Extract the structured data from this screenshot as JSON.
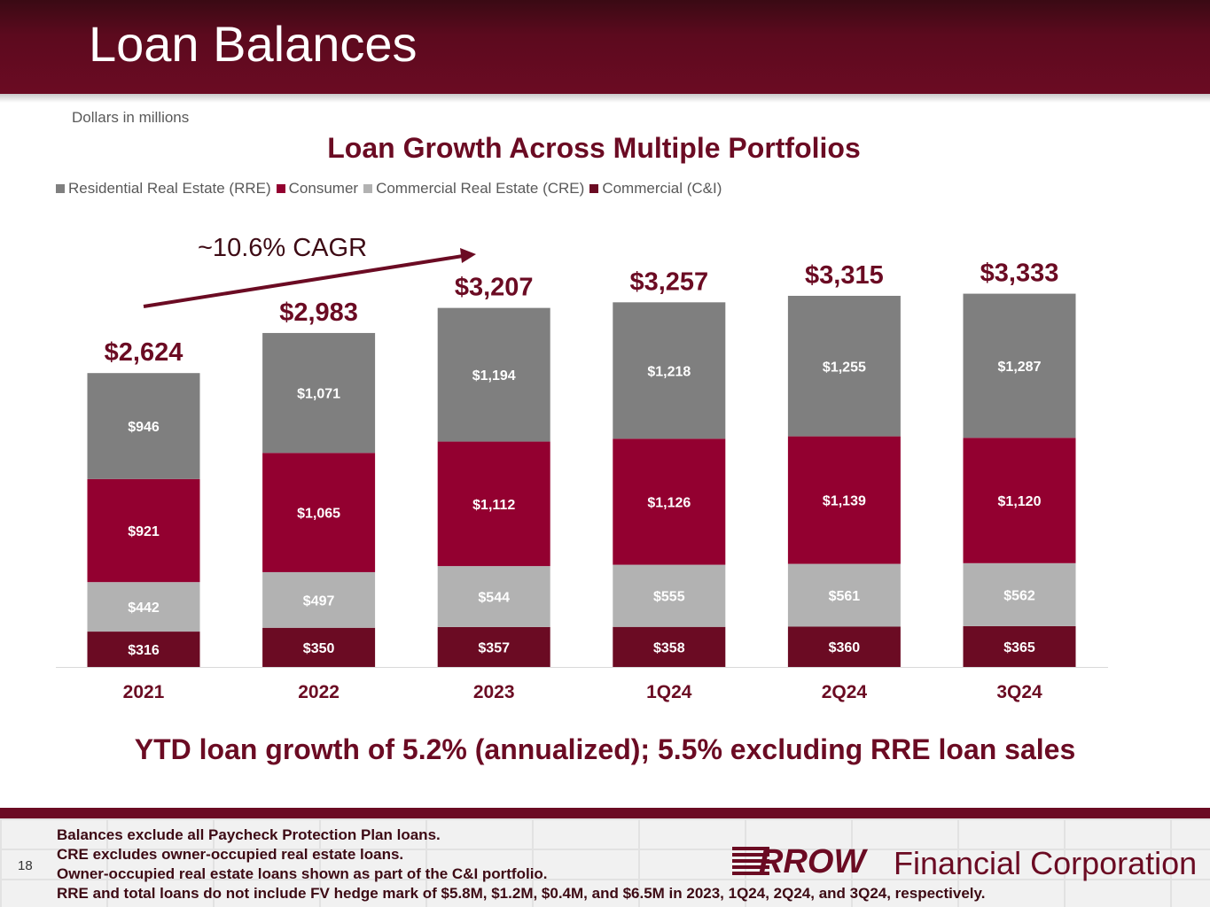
{
  "header": {
    "title": "Loan Balances"
  },
  "units_note": "Dollars in millions",
  "callout": "YTD loan growth of 5.2% (annualized); 5.5% excluding RRE loan sales",
  "cagr_label": "~10.6% CAGR",
  "footer": {
    "page_number": "18",
    "notes": [
      "Balances exclude all Paycheck Protection Plan loans.",
      "CRE excludes owner-occupied real estate loans.",
      "Owner-occupied real estate loans shown as part of the C&I portfolio.",
      "RRE and total loans do not include FV hedge mark of $5.8M, $1.2M, $0.4M, and $6.5M in 2023, 1Q24, 2Q24, and 3Q24, respectively."
    ],
    "logo_word": "RROW",
    "logo_tail": "Financial Corporation"
  },
  "colors": {
    "rre": "#7f7f7f",
    "consumer": "#930030",
    "cre": "#b2b2b2",
    "ci": "#6b0b23",
    "accent": "#6b0b23"
  },
  "chart_data": {
    "type": "bar",
    "stacked": true,
    "title": "Loan Growth Across Multiple Portfolios",
    "categories": [
      "2021",
      "2022",
      "2023",
      "1Q24",
      "2Q24",
      "3Q24"
    ],
    "series": [
      {
        "name": "Commercial (C&I)",
        "values": [
          316,
          350,
          357,
          358,
          360,
          365
        ],
        "labels": [
          "$316",
          "$350",
          "$357",
          "$358",
          "$360",
          "$365"
        ]
      },
      {
        "name": "Commercial Real Estate (CRE)",
        "values": [
          442,
          497,
          544,
          555,
          561,
          562
        ],
        "labels": [
          "$442",
          "$497",
          "$544",
          "$555",
          "$561",
          "$562"
        ]
      },
      {
        "name": "Consumer",
        "values": [
          921,
          1065,
          1112,
          1126,
          1139,
          1120
        ],
        "labels": [
          "$921",
          "$1,065",
          "$1,112",
          "$1,126",
          "$1,139",
          "$1,120"
        ]
      },
      {
        "name": "Residential Real Estate (RRE)",
        "values": [
          946,
          1071,
          1194,
          1218,
          1255,
          1287
        ],
        "labels": [
          "$946",
          "$1,071",
          "$1,194",
          "$1,218",
          "$1,255",
          "$1,287"
        ]
      }
    ],
    "totals": [
      2624,
      2983,
      3207,
      3257,
      3315,
      3333
    ],
    "total_labels": [
      "$2,624",
      "$2,983",
      "$3,207",
      "$3,257",
      "$3,315",
      "$3,333"
    ],
    "legend": [
      "Residential Real Estate (RRE)",
      "Consumer",
      "Commercial Real Estate (CRE)",
      "Commercial (C&I)"
    ],
    "legend_position": "top-left",
    "ylim": [
      0,
      3333
    ],
    "grid": false
  }
}
